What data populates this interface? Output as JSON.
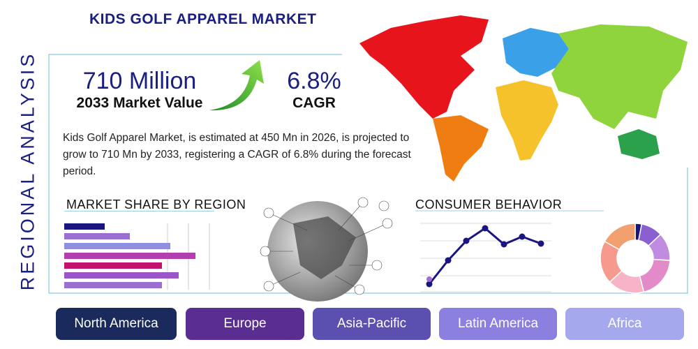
{
  "header": {
    "title": "KIDS GOLF APPAREL MARKET",
    "side_label": "REGIONAL ANALYSIS"
  },
  "stats": {
    "market_value": "710 Million",
    "market_value_label": "2033 Market Value",
    "cagr": "6.8%",
    "cagr_label": "CAGR"
  },
  "description": "Kids Golf Apparel Market, is estimated at 450 Mn in 2026, is projected to grow to 710 Mn by 2033, registering a CAGR of 6.8% during the forecast period.",
  "sections": {
    "market_share": "MARKET SHARE BY REGION",
    "consumer_behavior": "CONSUMER BEHAVIOR"
  },
  "regions": [
    "North America",
    "Europe",
    "Asia-Pacific",
    "Latin America",
    "Africa"
  ]
}
